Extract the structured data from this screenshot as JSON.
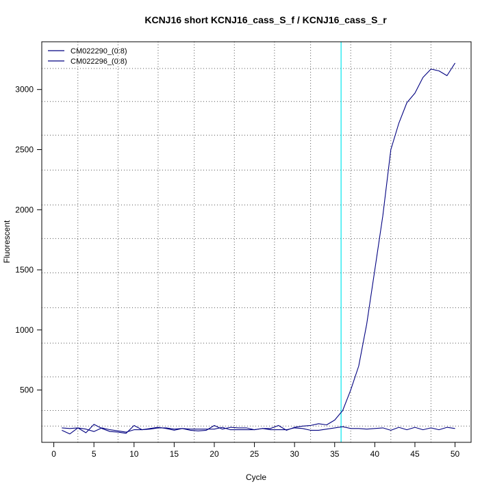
{
  "chart_data": {
    "type": "line",
    "title": "KCNJ16 short KCNJ16_cass_S_f / KCNJ16_cass_S_r",
    "xlabel": "Cycle",
    "ylabel": "Fluorescent",
    "xlim": [
      -1.5,
      52.0
    ],
    "ylim": [
      65,
      3397
    ],
    "xticks": [
      0,
      5,
      10,
      15,
      20,
      25,
      30,
      35,
      40,
      45,
      50
    ],
    "yticks": [
      500,
      1000,
      1500,
      2000,
      2500,
      3000
    ],
    "grid": true,
    "grid_style": "dotted",
    "x_grid": [
      3,
      8,
      13,
      17.5,
      22.5,
      27.5,
      32,
      37,
      42,
      47
    ],
    "y_grid": [
      200,
      330,
      610,
      890,
      1185,
      1475,
      1760,
      2040,
      2330,
      2620,
      2900,
      3175
    ],
    "threshold_x": 35.8,
    "threshold_color": "#00e5ee",
    "legend_position": "top-left",
    "x": [
      1,
      2,
      3,
      4,
      5,
      6,
      7,
      8,
      9,
      10,
      11,
      12,
      13,
      14,
      15,
      16,
      17,
      18,
      19,
      20,
      21,
      22,
      23,
      24,
      25,
      26,
      27,
      28,
      29,
      30,
      31,
      32,
      33,
      34,
      35,
      36,
      37,
      38,
      39,
      40,
      41,
      42,
      43,
      44,
      45,
      46,
      47,
      48,
      49,
      50
    ],
    "series": [
      {
        "name": "CM022290_(0:8)",
        "color": "#000080",
        "values": [
          165,
          135,
          185,
          145,
          215,
          180,
          155,
          150,
          140,
          205,
          170,
          175,
          185,
          185,
          175,
          180,
          165,
          160,
          165,
          205,
          175,
          190,
          185,
          185,
          170,
          180,
          180,
          205,
          165,
          190,
          200,
          205,
          220,
          210,
          250,
          330,
          500,
          700,
          1050,
          1500,
          1950,
          2500,
          2720,
          2890,
          2970,
          3100,
          3170,
          3155,
          3115,
          3220
        ]
      },
      {
        "name": "CM022296_(0:8)",
        "color": "#000080",
        "values": [
          185,
          180,
          185,
          175,
          155,
          185,
          170,
          160,
          150,
          170,
          170,
          180,
          190,
          180,
          165,
          180,
          175,
          175,
          175,
          175,
          190,
          170,
          170,
          170,
          170,
          180,
          170,
          170,
          170,
          185,
          180,
          165,
          165,
          175,
          185,
          195,
          180,
          180,
          175,
          180,
          185,
          165,
          190,
          170,
          190,
          170,
          185,
          170,
          190,
          180
        ]
      }
    ]
  }
}
